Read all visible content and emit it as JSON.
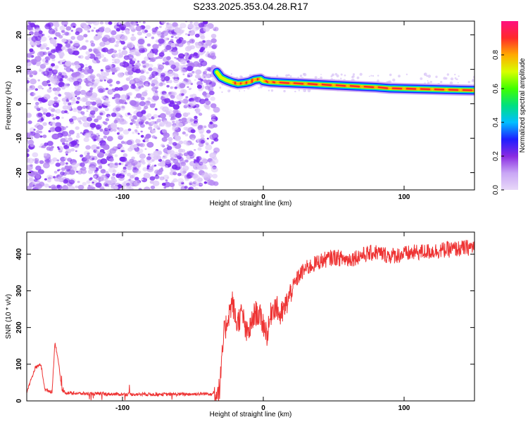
{
  "title": "S233.2025.353.04.28.R17",
  "colors": {
    "snr_line": "#ee3333",
    "spectrogram_noise": "#7a28f0",
    "axis": "#000000",
    "background": "#ffffff"
  },
  "colorbar_stops": [
    "#e8d8f8",
    "#c9a6f5",
    "#8a2be2",
    "#1e1eff",
    "#00bfff",
    "#00e080",
    "#40ff00",
    "#d8ff00",
    "#ffaa00",
    "#ff2a2a",
    "#ff1080"
  ],
  "chart_data": [
    {
      "type": "heatmap",
      "title": "S233.2025.353.04.28.R17",
      "xlabel": "Height of straight line (km)",
      "ylabel": "Frequency (Hz)",
      "xlim": [
        -168,
        150
      ],
      "ylim": [
        -25,
        24
      ],
      "xticks": [
        -100,
        0,
        100
      ],
      "xtick_labels": [
        "-100",
        "0",
        "100"
      ],
      "yticks": [
        -20,
        -10,
        0,
        10,
        20
      ],
      "ytick_labels": [
        "-20",
        "-10",
        "0",
        "10",
        "20"
      ],
      "noise_region_x": [
        -168,
        -33
      ],
      "ridge": {
        "x": [
          -33,
          -30,
          -26,
          -22,
          -18,
          -14,
          -10,
          -6,
          -2,
          0,
          5,
          10,
          20,
          30,
          40,
          50,
          60,
          70,
          80,
          90,
          100,
          110,
          120,
          130,
          140,
          150
        ],
        "freq_hz": [
          9.2,
          7.6,
          6.8,
          6.2,
          5.8,
          6.0,
          6.3,
          7.0,
          7.2,
          6.6,
          6.3,
          6.2,
          6.0,
          5.8,
          5.6,
          5.4,
          5.2,
          5.0,
          4.8,
          4.5,
          4.4,
          4.3,
          4.2,
          4.1,
          4.0,
          3.9
        ],
        "amplitude": [
          0.6,
          0.75,
          0.8,
          0.85,
          0.9,
          0.85,
          0.9,
          0.9,
          0.85,
          0.8,
          0.9,
          0.95,
          1.0,
          1.0,
          0.95,
          0.95,
          1.0,
          0.95,
          0.9,
          0.95,
          0.9,
          0.9,
          0.95,
          0.9,
          0.9,
          0.85
        ]
      },
      "colorbar": {
        "label": "Normalized spectral amplitude",
        "range": [
          0.0,
          1.0
        ],
        "ticks": [
          0.0,
          0.2,
          0.4,
          0.6,
          0.8
        ],
        "tick_labels": [
          "0.0",
          "0.2",
          "0.4",
          "0.6",
          "0.8"
        ]
      }
    },
    {
      "type": "line",
      "xlabel": "Height of straight line (km)",
      "ylabel": "SNR (10 * v/v)",
      "xlim": [
        -168,
        150
      ],
      "ylim": [
        0,
        460
      ],
      "xticks": [
        -100,
        0,
        100
      ],
      "xtick_labels": [
        "-100",
        "0",
        "100"
      ],
      "yticks": [
        0,
        100,
        200,
        300,
        400
      ],
      "ytick_labels": [
        "0",
        "100",
        "200",
        "300",
        "400"
      ],
      "series": [
        {
          "name": "SNR",
          "x": [
            -168,
            -162,
            -158,
            -155,
            -150,
            -148,
            -146,
            -143,
            -140,
            -130,
            -100,
            -60,
            -35,
            -31,
            -28,
            -25,
            -22,
            -19,
            -15,
            -12,
            -9,
            -6,
            -3,
            0,
            3,
            6,
            9,
            12,
            15,
            20,
            25,
            30,
            40,
            50,
            60,
            70,
            80,
            90,
            100,
            110,
            120,
            130,
            140,
            150
          ],
          "values": [
            25,
            90,
            100,
            30,
            25,
            160,
            120,
            30,
            22,
            20,
            18,
            18,
            20,
            30,
            180,
            230,
            270,
            210,
            240,
            180,
            200,
            240,
            235,
            210,
            180,
            250,
            260,
            230,
            250,
            300,
            340,
            360,
            380,
            392,
            385,
            397,
            405,
            395,
            400,
            405,
            408,
            412,
            415,
            420
          ]
        }
      ]
    }
  ]
}
